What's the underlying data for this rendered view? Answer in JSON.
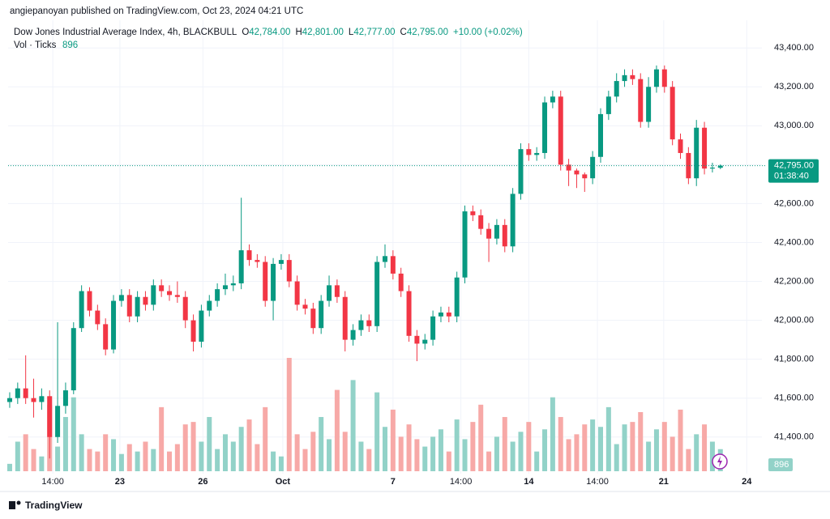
{
  "chart_data": {
    "type": "candlestick",
    "publisher": "angiepanoyan published on TradingView.com, Oct 23, 2024 04:21 UTC",
    "title": "Dow Jones Industrial Average Index, 4h, BLACKBULL",
    "ohlc_legend": [
      {
        "label": "O",
        "value": "42,784.00"
      },
      {
        "label": "H",
        "value": "42,801.00"
      },
      {
        "label": "L",
        "value": "42,777.00"
      },
      {
        "label": "C",
        "value": "42,795.00"
      }
    ],
    "change": "+10.00 (+0.02%)",
    "volume_title": "Vol · Ticks",
    "last_price": {
      "value": 42795,
      "label": "42,795.00"
    },
    "countdown": "01:38:40",
    "footer": "TradingView",
    "up_color": "#089981",
    "down_color": "#f23645",
    "up_volume_color": "#92d2c8",
    "down_volume_color": "#f7a9a7",
    "grid": true,
    "ylim": [
      41220,
      43480
    ],
    "yticks": [
      {
        "value": 41400,
        "label": "41,400.00"
      },
      {
        "value": 41600,
        "label": "41,600.00"
      },
      {
        "value": 41800,
        "label": "41,800.00"
      },
      {
        "value": 42000,
        "label": "42,000.00"
      },
      {
        "value": 42200,
        "label": "42,200.00"
      },
      {
        "value": 42400,
        "label": "42,400.00"
      },
      {
        "value": 42600,
        "label": "42,600.00"
      },
      {
        "value": 42800,
        "label": "42,800.00"
      },
      {
        "value": 43000,
        "label": "43,000.00"
      },
      {
        "value": 43200,
        "label": "43,200.00"
      },
      {
        "value": 43400,
        "label": "43,400.00"
      }
    ],
    "xlim": [
      -0.2,
      94.2
    ],
    "xticks": [
      {
        "value": 5.4,
        "label": "14:00"
      },
      {
        "value": 13.8,
        "label": "23"
      },
      {
        "value": 24.2,
        "label": "26"
      },
      {
        "value": 34.2,
        "label": "Oct"
      },
      {
        "value": 48,
        "label": "7"
      },
      {
        "value": 56.5,
        "label": "14:00"
      },
      {
        "value": 65,
        "label": "14"
      },
      {
        "value": 73.6,
        "label": "14:00"
      },
      {
        "value": 81.9,
        "label": "21"
      },
      {
        "value": 92.3,
        "label": "24"
      }
    ],
    "open": [
      41580,
      41600,
      41650,
      41600,
      41580,
      41610,
      41400,
      41560,
      41640,
      41960,
      42150,
      42050,
      41980,
      41850,
      42100,
      42130,
      42020,
      42120,
      42080,
      42180,
      42150,
      42130,
      42120,
      42000,
      41890,
      42050,
      42100,
      42160,
      42180,
      42190,
      42360,
      42310,
      42300,
      42100,
      42290,
      42310,
      42200,
      42080,
      42060,
      41960,
      42100,
      42180,
      42120,
      41900,
      41950,
      42000,
      41970,
      42300,
      42330,
      42240,
      42150,
      41920,
      41880,
      41900,
      42020,
      42040,
      42020,
      42220,
      42560,
      42540,
      42470,
      42420,
      42490,
      42380,
      42650,
      42880,
      42850,
      42860,
      43120,
      43150,
      42800,
      42770,
      42750,
      42730,
      42840,
      43060,
      43150,
      43230,
      43260,
      43240,
      43020,
      43200,
      43290,
      43200,
      42930,
      42860,
      42730,
      42990,
      42780,
      42784
    ],
    "high": [
      41630,
      41680,
      41820,
      41700,
      41650,
      41640,
      41990,
      41680,
      41990,
      42180,
      42170,
      42080,
      42010,
      42130,
      42160,
      42160,
      42150,
      42150,
      42210,
      42210,
      42180,
      42200,
      42150,
      42030,
      42080,
      42130,
      42190,
      42240,
      42230,
      42630,
      42390,
      42340,
      42330,
      42320,
      42340,
      42340,
      42230,
      42110,
      42090,
      42130,
      42230,
      42210,
      42150,
      41980,
      42030,
      42030,
      42330,
      42390,
      42360,
      42270,
      42180,
      41950,
      41930,
      42050,
      42070,
      42070,
      42250,
      42590,
      42590,
      42570,
      42500,
      42520,
      42520,
      42680,
      42910,
      42910,
      42890,
      43150,
      43180,
      43180,
      42830,
      42780,
      42760,
      42870,
      43090,
      43180,
      43270,
      43290,
      43290,
      43270,
      43250,
      43310,
      43310,
      43230,
      42960,
      42890,
      43030,
      43020,
      42810,
      42801
    ],
    "low": [
      41550,
      41570,
      41570,
      41500,
      41540,
      41290,
      41370,
      41520,
      41620,
      41940,
      42020,
      41950,
      41820,
      41830,
      42070,
      41990,
      41990,
      42050,
      42050,
      42120,
      42100,
      42090,
      41960,
      41840,
      41860,
      42020,
      42070,
      42130,
      42150,
      42160,
      42280,
      42270,
      42070,
      42000,
      42260,
      42170,
      42050,
      42030,
      41930,
      41930,
      42070,
      42090,
      41840,
      41870,
      41920,
      41940,
      41940,
      42270,
      42210,
      42120,
      41890,
      41790,
      41850,
      41870,
      41990,
      41990,
      41990,
      42190,
      42510,
      42440,
      42300,
      42390,
      42350,
      42350,
      42620,
      42820,
      42820,
      42830,
      43090,
      42770,
      42690,
      42680,
      42660,
      42700,
      42810,
      43030,
      43120,
      43200,
      43210,
      42990,
      42990,
      43170,
      43170,
      42900,
      42830,
      42700,
      42690,
      42750,
      42760,
      42777
    ],
    "close": [
      41600,
      41650,
      41600,
      41580,
      41610,
      41400,
      41560,
      41640,
      41960,
      42150,
      42050,
      41980,
      41850,
      42100,
      42130,
      42020,
      42120,
      42080,
      42180,
      42150,
      42130,
      42120,
      42000,
      41890,
      42050,
      42100,
      42160,
      42180,
      42190,
      42360,
      42310,
      42300,
      42100,
      42290,
      42310,
      42200,
      42080,
      42060,
      41960,
      42100,
      42180,
      42120,
      41900,
      41950,
      42000,
      41970,
      42300,
      42330,
      42240,
      42150,
      41920,
      41880,
      41900,
      42020,
      42040,
      42020,
      42220,
      42560,
      42540,
      42470,
      42420,
      42490,
      42380,
      42650,
      42880,
      42850,
      42860,
      43120,
      43150,
      42800,
      42770,
      42750,
      42730,
      42840,
      43060,
      43150,
      43230,
      43260,
      43240,
      43020,
      43200,
      43290,
      43200,
      42930,
      42860,
      42730,
      42990,
      42780,
      42785,
      42795
    ],
    "volume": [
      300,
      1200,
      1500,
      900,
      600,
      2700,
      1000,
      2200,
      3000,
      1500,
      900,
      800,
      1500,
      1300,
      700,
      1100,
      800,
      1200,
      900,
      2600,
      800,
      1100,
      1900,
      2000,
      1200,
      2200,
      900,
      1500,
      1200,
      1800,
      2100,
      1100,
      2600,
      800,
      600,
      4600,
      1500,
      900,
      1600,
      2200,
      1300,
      3300,
      1600,
      3700,
      1200,
      900,
      3200,
      1800,
      2500,
      1400,
      1900,
      1300,
      1000,
      1400,
      1700,
      800,
      2100,
      1300,
      2000,
      2700,
      800,
      1400,
      2200,
      1200,
      1600,
      2000,
      800,
      1700,
      3000,
      2200,
      1300,
      1500,
      1900,
      2100,
      1800,
      2600,
      1100,
      1900,
      2000,
      2400,
      1200,
      1700,
      2000,
      1400,
      2500,
      900,
      1500,
      1900,
      1200,
      896
    ]
  }
}
